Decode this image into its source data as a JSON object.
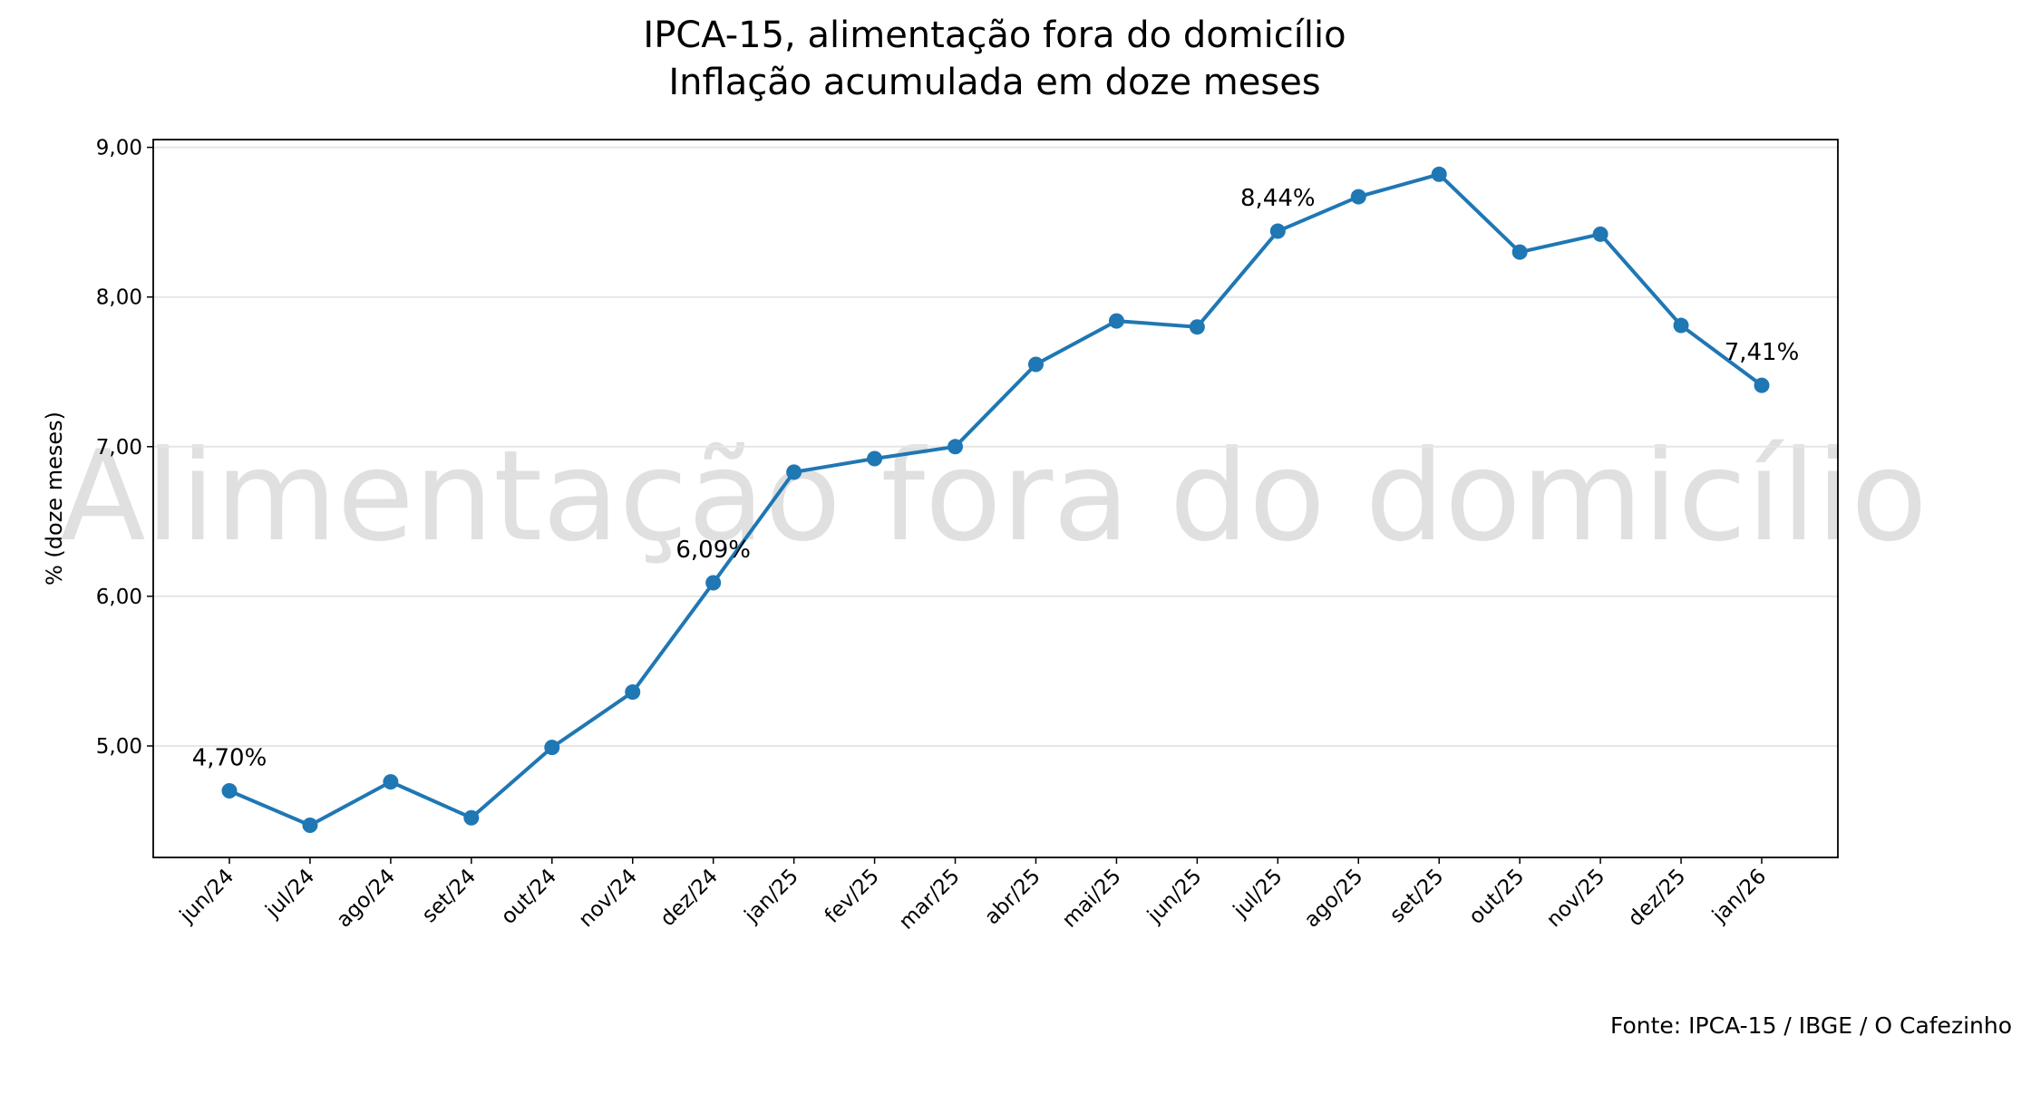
{
  "chart_data": {
    "type": "line",
    "title": "IPCA-15, alimentação fora do domicílio",
    "subtitle": "Inflação acumulada em doze meses",
    "y_label": "% (doze meses)",
    "watermark": "Alimentação fora do domicílio",
    "source": "Fonte: IPCA-15 / IBGE / O Cafezinho",
    "categories": [
      "jun/24",
      "jul/24",
      "ago/24",
      "set/24",
      "out/24",
      "nov/24",
      "dez/24",
      "jan/25",
      "fev/25",
      "mar/25",
      "abr/25",
      "mai/25",
      "jun/25",
      "jul/25",
      "ago/25",
      "set/25",
      "out/25",
      "nov/25",
      "dez/25",
      "jan/26"
    ],
    "series": [
      {
        "color": "#1f77b4",
        "values": [
          4.7,
          4.47,
          4.76,
          4.52,
          4.99,
          5.36,
          6.09,
          6.83,
          6.92,
          7.0,
          7.55,
          7.84,
          7.8,
          8.44,
          8.67,
          8.82,
          8.3,
          8.42,
          7.81,
          7.41
        ],
        "value_labels": [
          "4,70%",
          null,
          null,
          null,
          null,
          null,
          "6,09%",
          null,
          null,
          null,
          null,
          null,
          null,
          "8,44%",
          null,
          null,
          null,
          null,
          null,
          "7,41%"
        ]
      }
    ],
    "ylim": [
      4.255,
      9.052
    ],
    "yticks": [
      {
        "value": 5,
        "label": "5,00"
      },
      {
        "value": 6,
        "label": "6,00"
      },
      {
        "value": 7,
        "label": "7,00"
      },
      {
        "value": 8,
        "label": "8,00"
      },
      {
        "value": 9,
        "label": "9,00"
      }
    ],
    "grid": true
  }
}
